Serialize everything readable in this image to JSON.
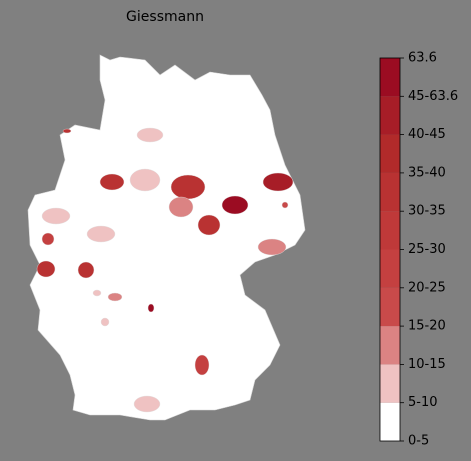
{
  "title": "Giessmann",
  "colorbar": {
    "ticks": [
      "0-5",
      "5-10",
      "10-15",
      "15-20",
      "20-25",
      "25-30",
      "30-35",
      "35-40",
      "40-45",
      "45-63.6",
      63.6
    ],
    "colors": [
      "#ffffff",
      "#efc2c2",
      "#db8383",
      "#c84a4a",
      "#c44040",
      "#bf3939",
      "#b93232",
      "#b12a2a",
      "#a71d27",
      "#9b0c22"
    ]
  }
}
